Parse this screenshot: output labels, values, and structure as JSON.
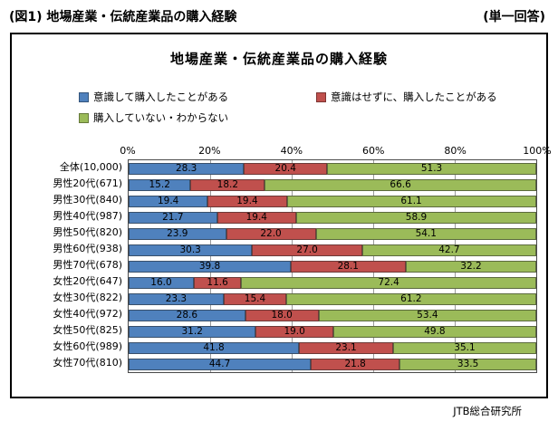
{
  "page": {
    "header_title": "(図1) 地場産業・伝統産業品の購入経験",
    "header_right": "(単一回答)",
    "footer": "JTB総合研究所"
  },
  "chart_data": {
    "type": "bar",
    "orientation": "horizontal",
    "stacked": true,
    "title": "地場産業・伝統産業品の購入経験",
    "categories": [
      "全体(10,000)",
      "男性20代(671)",
      "男性30代(840)",
      "男性40代(987)",
      "男性50代(820)",
      "男性60代(938)",
      "男性70代(678)",
      "女性20代(647)",
      "女性30代(822)",
      "女性40代(972)",
      "女性50代(825)",
      "女性60代(989)",
      "女性70代(810)"
    ],
    "series": [
      {
        "name": "意識して購入したことがある",
        "color": "#4F81BD",
        "values": [
          28.3,
          15.2,
          19.4,
          21.7,
          23.9,
          30.3,
          39.8,
          16.0,
          23.3,
          28.6,
          31.2,
          41.8,
          44.7
        ]
      },
      {
        "name": "意識はせずに、購入したことがある",
        "color": "#C0504D",
        "values": [
          20.4,
          18.2,
          19.4,
          19.4,
          22.0,
          27.0,
          28.1,
          11.6,
          15.4,
          18.0,
          19.0,
          23.1,
          21.8
        ]
      },
      {
        "name": "購入していない・わからない",
        "color": "#9BBB59",
        "values": [
          51.3,
          66.6,
          61.1,
          58.9,
          54.1,
          42.7,
          32.2,
          72.4,
          61.2,
          53.4,
          49.8,
          35.1,
          33.5
        ]
      }
    ],
    "x_ticks": [
      "0%",
      "20%",
      "40%",
      "60%",
      "80%",
      "100%"
    ],
    "xlim": [
      0,
      100
    ],
    "value_decimals": 1,
    "legend_position": "top",
    "grid": true
  }
}
